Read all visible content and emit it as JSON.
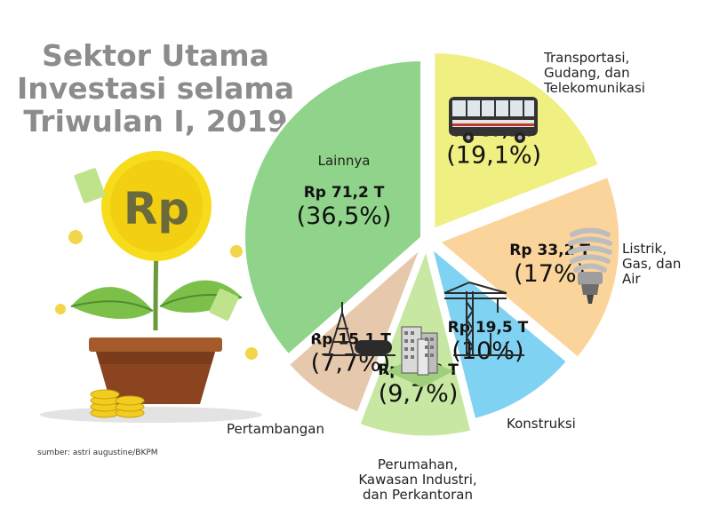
{
  "title_lines": [
    "Sektor Utama",
    "Investasi selama",
    "Triwulan I, 2019"
  ],
  "source": "sumber: astri augustine/BKPM",
  "icons": {
    "plant": "money-plant-icon",
    "coin_symbol": "Rp",
    "bus": "bus-icon",
    "bulb": "light-bulb-icon",
    "crane": "construction-crane-icon",
    "buildings": "office-buildings-icon",
    "oil": "oil-rig-icon"
  },
  "chart_data": {
    "type": "pie",
    "title": "Sektor Utama Investasi selama Triwulan I, 2019",
    "unit": "Rp triliun",
    "slices": [
      {
        "name": "Transportasi, Gudang, dan Telekomunikasi",
        "name_lines": [
          "Transportasi,",
          "Gudang, dan",
          "Telekomunikasi"
        ],
        "value_label": "Rp 37,3 T",
        "value": 37.3,
        "percent_label": "(19,1%)",
        "percent": 19.1,
        "color": "#f0ef82"
      },
      {
        "name": "Listrik, Gas, dan Air",
        "name_lines": [
          "Listrik,",
          "Gas, dan",
          "Air"
        ],
        "value_label": "Rp 33,2 T",
        "value": 33.2,
        "percent_label": "(17%)",
        "percent": 17,
        "color": "#fbd49b"
      },
      {
        "name": "Konstruksi",
        "name_lines": [
          "Konstruksi"
        ],
        "value_label": "Rp 19,5 T",
        "value": 19.5,
        "percent_label": "(10%)",
        "percent": 10,
        "color": "#7fd2f2"
      },
      {
        "name": "Perumahan, Kawasan Industri, dan Perkantoran",
        "name_lines": [
          "Perumahan,",
          "Kawasan Industri,",
          "dan Perkantoran"
        ],
        "value_label": "Rp 18,8 T",
        "value": 18.8,
        "percent_label": "(9,7%)",
        "percent": 9.7,
        "color": "#c7e7a2"
      },
      {
        "name": "Pertambangan",
        "name_lines": [
          "Pertambangan"
        ],
        "value_label": "Rp 15,1 T",
        "value": 15.1,
        "percent_label": "(7,7%)",
        "percent": 7.7,
        "color": "#e6c9ad"
      },
      {
        "name": "Lainnya",
        "name_lines": [
          "Lainnya"
        ],
        "value_label": "Rp 71,2 T",
        "value": 71.2,
        "percent_label": "(36,5%)",
        "percent": 36.5,
        "color": "#8fd48a"
      }
    ]
  }
}
